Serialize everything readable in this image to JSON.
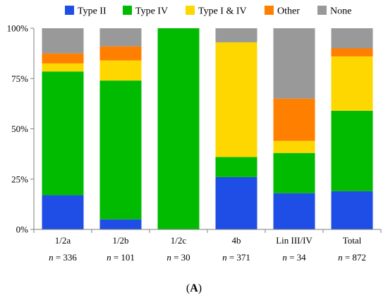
{
  "chart_data": {
    "type": "bar",
    "stacked": true,
    "y_axis": {
      "min": 0,
      "max": 100,
      "ticks": [
        0,
        25,
        50,
        75,
        100
      ],
      "tick_labels": [
        "0%",
        "25%",
        "50%",
        "75%",
        "100%"
      ]
    },
    "categories": [
      {
        "label": "1/2a",
        "n_prefix": "n",
        "n_text": " = 336"
      },
      {
        "label": "1/2b",
        "n_prefix": "n",
        "n_text": " = 101"
      },
      {
        "label": "1/2c",
        "n_prefix": "n",
        "n_text": " = 30"
      },
      {
        "label": "4b",
        "n_prefix": "n",
        "n_text": " = 371"
      },
      {
        "label": "Lin III/IV",
        "n_prefix": "n",
        "n_text": " = 34"
      },
      {
        "label": "Total",
        "n_prefix": "n",
        "n_text": " = 872"
      }
    ],
    "series": [
      {
        "name": "Type II",
        "color": "#1f4ee6",
        "values": [
          17,
          5,
          0,
          26,
          18,
          19
        ]
      },
      {
        "name": "Type IV",
        "color": "#00bb00",
        "values": [
          61.5,
          69,
          100,
          10,
          20,
          40
        ]
      },
      {
        "name": "Type I & IV",
        "color": "#ffd700",
        "values": [
          4,
          10,
          0,
          57,
          6,
          27
        ]
      },
      {
        "name": "Other",
        "color": "#ff7f00",
        "values": [
          5,
          7,
          0,
          0,
          21,
          4
        ]
      },
      {
        "name": "None",
        "color": "#999999",
        "values": [
          12.5,
          9,
          0,
          7,
          35,
          10
        ]
      }
    ],
    "legend_position": "top",
    "grid": false,
    "caption_paren_open": "(",
    "caption_letter": "A",
    "caption_paren_close": ")"
  }
}
